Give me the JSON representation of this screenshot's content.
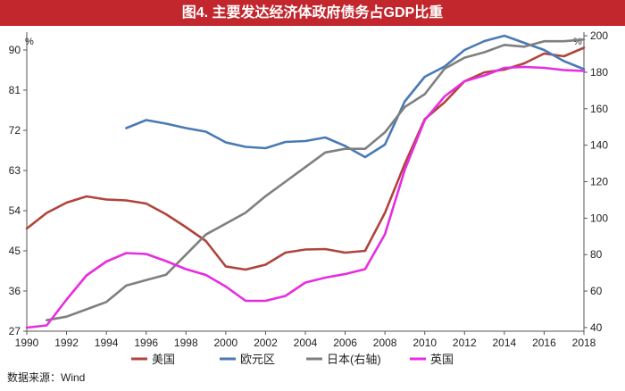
{
  "title": "图4. 主要发达经济体政府债务占GDP比重",
  "source": "数据来源：Wind",
  "chart_data": {
    "type": "line",
    "title": "图4. 主要发达经济体政府债务占GDP比重",
    "x": [
      1990,
      1991,
      1992,
      1993,
      1994,
      1995,
      1996,
      1997,
      1998,
      1999,
      2000,
      2001,
      2002,
      2003,
      2004,
      2005,
      2006,
      2007,
      2008,
      2009,
      2010,
      2011,
      2012,
      2013,
      2014,
      2015,
      2016,
      2017,
      2018
    ],
    "x_ticks": [
      1990,
      1992,
      1994,
      1996,
      1998,
      2000,
      2002,
      2004,
      2006,
      2008,
      2010,
      2012,
      2014,
      2016,
      2018
    ],
    "left_axis": {
      "unit": "%",
      "ylim": [
        27,
        94
      ],
      "ticks": [
        27,
        36,
        45,
        54,
        63,
        72,
        81,
        90
      ]
    },
    "right_axis": {
      "unit": "%",
      "ylim": [
        38,
        202
      ],
      "ticks": [
        40,
        60,
        80,
        100,
        120,
        140,
        160,
        180,
        200
      ]
    },
    "series": [
      {
        "name": "美国",
        "axis": "left",
        "color": "#b0443c",
        "values": [
          50,
          53.5,
          55.8,
          57.2,
          56.5,
          56.3,
          55.6,
          53.2,
          50.3,
          47.2,
          41.5,
          40.8,
          41.9,
          44.6,
          45.3,
          45.4,
          44.6,
          45.0,
          53.5,
          64.5,
          74.5,
          78.3,
          83.0,
          85.0,
          85.6,
          87.0,
          89.2,
          88.6,
          90.5
        ]
      },
      {
        "name": "欧元区",
        "axis": "left",
        "color": "#4a7ab5",
        "values": [
          null,
          null,
          null,
          null,
          null,
          72.5,
          74.3,
          73.5,
          72.5,
          71.7,
          69.3,
          68.3,
          68.0,
          69.4,
          69.6,
          70.4,
          68.5,
          66.0,
          68.8,
          78.5,
          84.0,
          86.3,
          90.0,
          92.0,
          93.2,
          91.6,
          90.0,
          87.5,
          85.7
        ]
      },
      {
        "name": "日本(右轴)",
        "axis": "right",
        "color": "#7f7f7f",
        "values": [
          null,
          44,
          46,
          50,
          54,
          63,
          66,
          69,
          80,
          91,
          97,
          103,
          112,
          120,
          128,
          136,
          138,
          138,
          147,
          161,
          168,
          182,
          188,
          191,
          195,
          194,
          197,
          197,
          198
        ]
      },
      {
        "name": "英国",
        "axis": "left",
        "color": "#e62de0",
        "values": [
          27.8,
          28.3,
          34.1,
          39.5,
          42.6,
          44.5,
          44.3,
          42.7,
          40.9,
          39.6,
          37.0,
          33.8,
          33.8,
          34.9,
          37.9,
          39.0,
          39.8,
          40.9,
          48.7,
          63.2,
          74.3,
          79.6,
          83.0,
          84.3,
          86.0,
          86.2,
          86.0,
          85.5,
          85.3
        ]
      }
    ]
  }
}
